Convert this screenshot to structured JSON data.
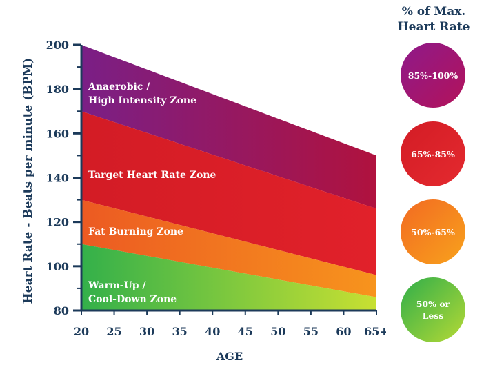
{
  "chart_data": {
    "type": "area",
    "ylabel": "Heart Rate - Beats per minute (BPM)",
    "xlabel": "AGE",
    "ylim": [
      80,
      200
    ],
    "y_ticks": [
      "80",
      "100",
      "120",
      "140",
      "160",
      "180",
      "200"
    ],
    "x_ticks": [
      "20",
      "25",
      "30",
      "35",
      "40",
      "45",
      "50",
      "55",
      "60",
      "65+"
    ],
    "x": [
      20,
      65
    ],
    "bands": [
      {
        "label": "Anaerobic / High Intensity Zone",
        "lower": [
          170,
          126
        ],
        "upper": [
          200,
          150
        ],
        "colors": [
          "#7a1f86",
          "#b0123e"
        ]
      },
      {
        "label": "Target Heart Rate Zone",
        "lower": [
          130,
          96
        ],
        "upper": [
          170,
          126
        ],
        "colors": [
          "#d31c25",
          "#e1212a"
        ]
      },
      {
        "label": "Fat Burning Zone",
        "lower": [
          110,
          86
        ],
        "upper": [
          130,
          96
        ],
        "colors": [
          "#ec5a22",
          "#f7941d"
        ]
      },
      {
        "label": "Warm-Up / Cool-Down Zone",
        "lower": [
          80,
          80
        ],
        "upper": [
          110,
          86
        ],
        "colors": [
          "#33b04a",
          "#c8e032"
        ]
      }
    ],
    "axis_color": "#1c3a5a"
  },
  "legend": {
    "title_line1": "% of Max.",
    "title_line2": "Heart Rate",
    "items": [
      {
        "text": "85%-100%",
        "colors": [
          "#8e1a8a",
          "#b3125a"
        ]
      },
      {
        "text": "65%-85%",
        "colors": [
          "#d31c25",
          "#e42a2f"
        ]
      },
      {
        "text": "50%-65%",
        "colors": [
          "#f26a22",
          "#f8a21c"
        ]
      },
      {
        "text": "50% or Less",
        "colors": [
          "#2fae4a",
          "#b5d935"
        ]
      }
    ]
  }
}
